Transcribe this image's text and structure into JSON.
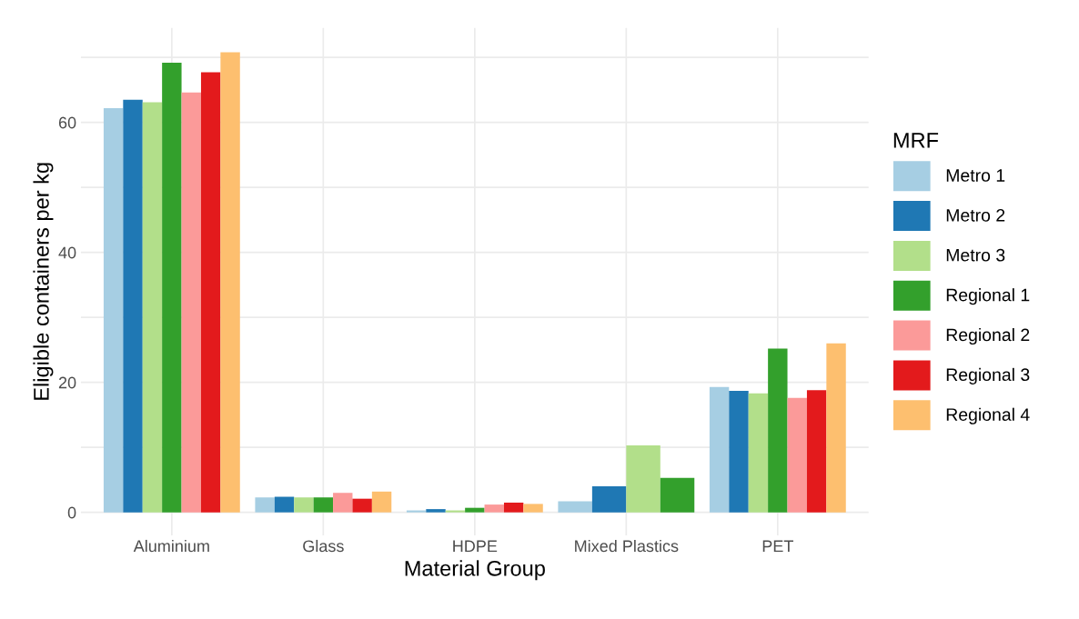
{
  "chart_data": {
    "type": "bar",
    "xlabel": "Material Group",
    "ylabel": "Eligible containers per kg",
    "legend_title": "MRF",
    "categories": [
      "Aluminium",
      "Glass",
      "HDPE",
      "Mixed Plastics",
      "PET"
    ],
    "series": [
      {
        "name": "Metro 1",
        "color": "#a6cee3",
        "values": [
          62.2,
          2.3,
          0.3,
          1.7,
          19.3
        ]
      },
      {
        "name": "Metro 2",
        "color": "#1f78b4",
        "values": [
          63.5,
          2.4,
          0.5,
          4.0,
          18.7
        ]
      },
      {
        "name": "Metro 3",
        "color": "#b2df8a",
        "values": [
          63.1,
          2.3,
          0.3,
          10.3,
          18.3
        ]
      },
      {
        "name": "Regional 1",
        "color": "#33a02c",
        "values": [
          69.2,
          2.3,
          0.7,
          5.3,
          25.2
        ]
      },
      {
        "name": "Regional 2",
        "color": "#fb9a99",
        "values": [
          64.6,
          3.0,
          1.2,
          null,
          17.6
        ]
      },
      {
        "name": "Regional 3",
        "color": "#e31a1c",
        "values": [
          67.7,
          2.1,
          1.5,
          null,
          18.8
        ]
      },
      {
        "name": "Regional 4",
        "color": "#fdbf6f",
        "values": [
          70.8,
          3.2,
          1.3,
          null,
          26.0
        ]
      }
    ],
    "ylim": [
      -3.55,
      74.55
    ],
    "yticks": [
      0,
      {
        "value": 10,
        "label": null
      },
      20,
      {
        "value": 30,
        "label": null
      },
      40,
      {
        "value": 50,
        "label": null
      },
      60,
      {
        "value": 70,
        "label": null
      }
    ],
    "grid": true,
    "legend": "right"
  }
}
